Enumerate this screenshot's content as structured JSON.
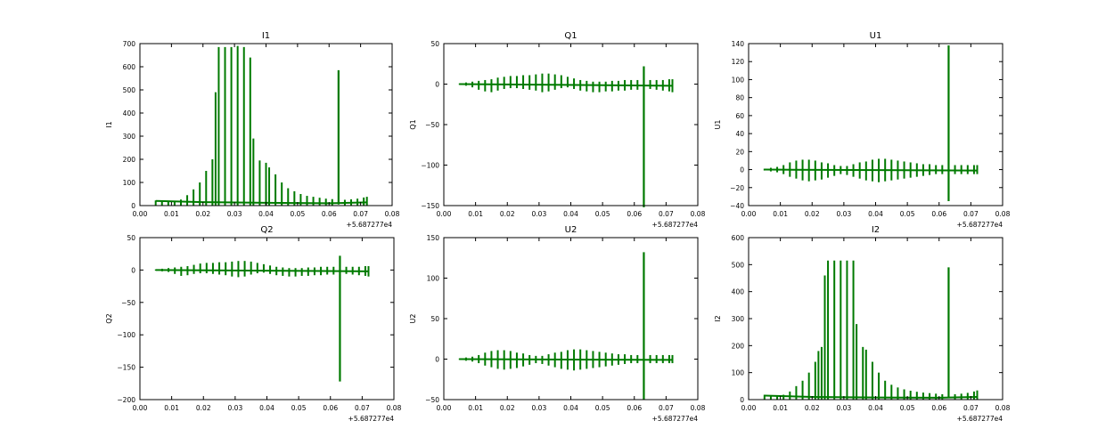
{
  "chart_data": [
    {
      "type": "line",
      "title": "I1",
      "ylabel": "I1",
      "xlim": [
        0.0,
        0.08
      ],
      "ylim": [
        0,
        700
      ],
      "xticks": [
        "0.00",
        "0.01",
        "0.02",
        "0.03",
        "0.04",
        "0.05",
        "0.06",
        "0.07",
        "0.08"
      ],
      "yticks": [
        "0",
        "100",
        "200",
        "300",
        "400",
        "500",
        "600",
        "700"
      ],
      "offset_label": "+5.687277e4",
      "line_color": "#007a00",
      "baseline": [
        [
          0.005,
          20
        ],
        [
          0.02,
          15
        ],
        [
          0.04,
          12
        ],
        [
          0.06,
          10
        ],
        [
          0.072,
          14
        ]
      ],
      "bars": [
        [
          0.005,
          0,
          22
        ],
        [
          0.007,
          0,
          21
        ],
        [
          0.009,
          0,
          20
        ],
        [
          0.011,
          0,
          21
        ],
        [
          0.013,
          0,
          26
        ],
        [
          0.015,
          0,
          45
        ],
        [
          0.017,
          0,
          70
        ],
        [
          0.019,
          0,
          100
        ],
        [
          0.021,
          0,
          150
        ],
        [
          0.023,
          0,
          200
        ],
        [
          0.024,
          0,
          490
        ],
        [
          0.025,
          0,
          685
        ],
        [
          0.027,
          0,
          685
        ],
        [
          0.029,
          0,
          685
        ],
        [
          0.031,
          0,
          690
        ],
        [
          0.033,
          0,
          685
        ],
        [
          0.035,
          0,
          640
        ],
        [
          0.036,
          0,
          290
        ],
        [
          0.038,
          0,
          195
        ],
        [
          0.04,
          0,
          185
        ],
        [
          0.041,
          0,
          165
        ],
        [
          0.043,
          0,
          135
        ],
        [
          0.045,
          0,
          100
        ],
        [
          0.047,
          0,
          75
        ],
        [
          0.049,
          0,
          62
        ],
        [
          0.051,
          0,
          50
        ],
        [
          0.053,
          0,
          42
        ],
        [
          0.055,
          0,
          38
        ],
        [
          0.057,
          0,
          34
        ],
        [
          0.059,
          0,
          30
        ],
        [
          0.061,
          0,
          28
        ],
        [
          0.065,
          0,
          25
        ],
        [
          0.067,
          0,
          27
        ],
        [
          0.069,
          0,
          30
        ],
        [
          0.071,
          0,
          35
        ],
        [
          0.072,
          0,
          38
        ]
      ],
      "spike": {
        "x": 0.063,
        "y": [
          5,
          585
        ]
      }
    },
    {
      "type": "line",
      "title": "Q1",
      "ylabel": "Q1",
      "xlim": [
        0.0,
        0.08
      ],
      "ylim": [
        -150,
        50
      ],
      "xticks": [
        "0.00",
        "0.01",
        "0.02",
        "0.03",
        "0.04",
        "0.05",
        "0.06",
        "0.07",
        "0.08"
      ],
      "yticks": [
        "−150",
        "−100",
        "−50",
        "0",
        "50"
      ],
      "offset_label": "+5.687277e4",
      "line_color": "#007a00",
      "baseline": [
        [
          0.005,
          0
        ],
        [
          0.072,
          -2
        ]
      ],
      "bars": [
        [
          0.005,
          -1,
          1
        ],
        [
          0.007,
          -2,
          2
        ],
        [
          0.009,
          -4,
          3
        ],
        [
          0.011,
          -7,
          4
        ],
        [
          0.013,
          -9,
          5
        ],
        [
          0.015,
          -10,
          6
        ],
        [
          0.017,
          -8,
          8
        ],
        [
          0.019,
          -6,
          9
        ],
        [
          0.021,
          -5,
          10
        ],
        [
          0.023,
          -5,
          10
        ],
        [
          0.025,
          -6,
          11
        ],
        [
          0.027,
          -7,
          11
        ],
        [
          0.029,
          -8,
          12
        ],
        [
          0.031,
          -10,
          13
        ],
        [
          0.033,
          -9,
          13
        ],
        [
          0.035,
          -7,
          12
        ],
        [
          0.037,
          -5,
          11
        ],
        [
          0.039,
          -4,
          9
        ],
        [
          0.041,
          -6,
          7
        ],
        [
          0.043,
          -8,
          5
        ],
        [
          0.045,
          -9,
          4
        ],
        [
          0.047,
          -10,
          3
        ],
        [
          0.049,
          -10,
          3
        ],
        [
          0.051,
          -9,
          3
        ],
        [
          0.053,
          -9,
          4
        ],
        [
          0.055,
          -8,
          4
        ],
        [
          0.057,
          -8,
          5
        ],
        [
          0.059,
          -7,
          5
        ],
        [
          0.061,
          -7,
          5
        ],
        [
          0.065,
          -6,
          5
        ],
        [
          0.067,
          -7,
          5
        ],
        [
          0.069,
          -8,
          5
        ],
        [
          0.071,
          -9,
          6
        ],
        [
          0.072,
          -10,
          6
        ]
      ],
      "spike": {
        "x": 0.063,
        "y": [
          -152,
          22
        ]
      }
    },
    {
      "type": "line",
      "title": "U1",
      "ylabel": "U1",
      "xlim": [
        0.0,
        0.08
      ],
      "ylim": [
        -40,
        140
      ],
      "xticks": [
        "0.00",
        "0.01",
        "0.02",
        "0.03",
        "0.04",
        "0.05",
        "0.06",
        "0.07",
        "0.08"
      ],
      "yticks": [
        "−40",
        "−20",
        "0",
        "20",
        "40",
        "60",
        "80",
        "100",
        "120",
        "140"
      ],
      "offset_label": "+5.687277e4",
      "line_color": "#007a00",
      "baseline": [
        [
          0.005,
          0
        ],
        [
          0.072,
          -1
        ]
      ],
      "bars": [
        [
          0.005,
          -1,
          1
        ],
        [
          0.007,
          -2,
          2
        ],
        [
          0.009,
          -3,
          3
        ],
        [
          0.011,
          -5,
          5
        ],
        [
          0.013,
          -8,
          8
        ],
        [
          0.015,
          -10,
          10
        ],
        [
          0.017,
          -12,
          11
        ],
        [
          0.019,
          -13,
          11
        ],
        [
          0.021,
          -12,
          10
        ],
        [
          0.023,
          -11,
          8
        ],
        [
          0.025,
          -9,
          7
        ],
        [
          0.027,
          -7,
          5
        ],
        [
          0.029,
          -5,
          4
        ],
        [
          0.031,
          -6,
          4
        ],
        [
          0.033,
          -8,
          6
        ],
        [
          0.035,
          -10,
          8
        ],
        [
          0.037,
          -12,
          9
        ],
        [
          0.039,
          -13,
          11
        ],
        [
          0.041,
          -14,
          12
        ],
        [
          0.043,
          -13,
          12
        ],
        [
          0.045,
          -12,
          11
        ],
        [
          0.047,
          -11,
          10
        ],
        [
          0.049,
          -10,
          9
        ],
        [
          0.051,
          -9,
          8
        ],
        [
          0.053,
          -8,
          7
        ],
        [
          0.055,
          -7,
          6
        ],
        [
          0.057,
          -6,
          6
        ],
        [
          0.059,
          -5,
          5
        ],
        [
          0.061,
          -5,
          5
        ],
        [
          0.065,
          -5,
          5
        ],
        [
          0.067,
          -5,
          5
        ],
        [
          0.069,
          -5,
          5
        ],
        [
          0.071,
          -5,
          5
        ],
        [
          0.072,
          -5,
          5
        ]
      ],
      "spike": {
        "x": 0.063,
        "y": [
          -35,
          138
        ]
      }
    },
    {
      "type": "line",
      "title": "Q2",
      "ylabel": "Q2",
      "xlim": [
        0.0,
        0.08
      ],
      "ylim": [
        -200,
        50
      ],
      "xticks": [
        "0.00",
        "0.01",
        "0.02",
        "0.03",
        "0.04",
        "0.05",
        "0.06",
        "0.07",
        "0.08"
      ],
      "yticks": [
        "−200",
        "−150",
        "−100",
        "−50",
        "0",
        "50"
      ],
      "offset_label": "+5.687277e4",
      "line_color": "#007a00",
      "baseline": [
        [
          0.005,
          0
        ],
        [
          0.072,
          -2
        ]
      ],
      "bars": [
        [
          0.005,
          -1,
          1
        ],
        [
          0.007,
          -2,
          2
        ],
        [
          0.009,
          -3,
          3
        ],
        [
          0.011,
          -6,
          4
        ],
        [
          0.013,
          -9,
          5
        ],
        [
          0.015,
          -8,
          6
        ],
        [
          0.017,
          -6,
          8
        ],
        [
          0.019,
          -5,
          10
        ],
        [
          0.021,
          -5,
          11
        ],
        [
          0.023,
          -6,
          11
        ],
        [
          0.025,
          -7,
          12
        ],
        [
          0.027,
          -8,
          12
        ],
        [
          0.029,
          -10,
          13
        ],
        [
          0.031,
          -11,
          14
        ],
        [
          0.033,
          -10,
          14
        ],
        [
          0.035,
          -7,
          13
        ],
        [
          0.037,
          -5,
          11
        ],
        [
          0.039,
          -4,
          9
        ],
        [
          0.041,
          -6,
          7
        ],
        [
          0.043,
          -8,
          5
        ],
        [
          0.045,
          -9,
          4
        ],
        [
          0.047,
          -10,
          3
        ],
        [
          0.049,
          -10,
          3
        ],
        [
          0.051,
          -9,
          3
        ],
        [
          0.053,
          -9,
          4
        ],
        [
          0.055,
          -8,
          4
        ],
        [
          0.057,
          -8,
          5
        ],
        [
          0.059,
          -7,
          5
        ],
        [
          0.061,
          -7,
          5
        ],
        [
          0.065,
          -6,
          5
        ],
        [
          0.067,
          -7,
          5
        ],
        [
          0.069,
          -8,
          5
        ],
        [
          0.071,
          -9,
          6
        ],
        [
          0.072,
          -10,
          6
        ]
      ],
      "spike": {
        "x": 0.063,
        "y": [
          -172,
          22
        ]
      }
    },
    {
      "type": "line",
      "title": "U2",
      "ylabel": "U2",
      "xlim": [
        0.0,
        0.08
      ],
      "ylim": [
        -50,
        150
      ],
      "xticks": [
        "0.00",
        "0.01",
        "0.02",
        "0.03",
        "0.04",
        "0.05",
        "0.06",
        "0.07",
        "0.08"
      ],
      "yticks": [
        "−50",
        "0",
        "50",
        "100",
        "150"
      ],
      "offset_label": "+5.687277e4",
      "line_color": "#007a00",
      "baseline": [
        [
          0.005,
          0
        ],
        [
          0.072,
          -1
        ]
      ],
      "bars": [
        [
          0.005,
          -1,
          1
        ],
        [
          0.007,
          -2,
          2
        ],
        [
          0.009,
          -3,
          3
        ],
        [
          0.011,
          -5,
          5
        ],
        [
          0.013,
          -8,
          8
        ],
        [
          0.015,
          -10,
          10
        ],
        [
          0.017,
          -12,
          11
        ],
        [
          0.019,
          -13,
          11
        ],
        [
          0.021,
          -12,
          10
        ],
        [
          0.023,
          -11,
          8
        ],
        [
          0.025,
          -9,
          7
        ],
        [
          0.027,
          -7,
          5
        ],
        [
          0.029,
          -5,
          4
        ],
        [
          0.031,
          -6,
          4
        ],
        [
          0.033,
          -8,
          6
        ],
        [
          0.035,
          -10,
          8
        ],
        [
          0.037,
          -12,
          9
        ],
        [
          0.039,
          -13,
          11
        ],
        [
          0.041,
          -14,
          12
        ],
        [
          0.043,
          -13,
          12
        ],
        [
          0.045,
          -12,
          11
        ],
        [
          0.047,
          -11,
          10
        ],
        [
          0.049,
          -10,
          9
        ],
        [
          0.051,
          -9,
          8
        ],
        [
          0.053,
          -8,
          7
        ],
        [
          0.055,
          -7,
          6
        ],
        [
          0.057,
          -6,
          6
        ],
        [
          0.059,
          -5,
          5
        ],
        [
          0.061,
          -5,
          5
        ],
        [
          0.065,
          -5,
          5
        ],
        [
          0.067,
          -5,
          5
        ],
        [
          0.069,
          -5,
          5
        ],
        [
          0.071,
          -5,
          5
        ],
        [
          0.072,
          -5,
          5
        ]
      ],
      "spike": {
        "x": 0.063,
        "y": [
          -50,
          132
        ]
      }
    },
    {
      "type": "line",
      "title": "I2",
      "ylabel": "I2",
      "xlim": [
        0.0,
        0.08
      ],
      "ylim": [
        0,
        600
      ],
      "xticks": [
        "0.00",
        "0.01",
        "0.02",
        "0.03",
        "0.04",
        "0.05",
        "0.06",
        "0.07",
        "0.08"
      ],
      "yticks": [
        "0",
        "100",
        "200",
        "300",
        "400",
        "500",
        "600"
      ],
      "offset_label": "+5.687277e4",
      "line_color": "#007a00",
      "baseline": [
        [
          0.005,
          15
        ],
        [
          0.02,
          10
        ],
        [
          0.04,
          8
        ],
        [
          0.06,
          7
        ],
        [
          0.072,
          10
        ]
      ],
      "bars": [
        [
          0.005,
          0,
          18
        ],
        [
          0.007,
          0,
          16
        ],
        [
          0.009,
          0,
          15
        ],
        [
          0.011,
          0,
          18
        ],
        [
          0.013,
          0,
          30
        ],
        [
          0.015,
          0,
          50
        ],
        [
          0.017,
          0,
          70
        ],
        [
          0.019,
          0,
          100
        ],
        [
          0.021,
          0,
          140
        ],
        [
          0.022,
          0,
          180
        ],
        [
          0.023,
          0,
          195
        ],
        [
          0.024,
          0,
          460
        ],
        [
          0.025,
          0,
          515
        ],
        [
          0.027,
          0,
          515
        ],
        [
          0.029,
          0,
          515
        ],
        [
          0.031,
          0,
          515
        ],
        [
          0.033,
          0,
          515
        ],
        [
          0.034,
          0,
          280
        ],
        [
          0.036,
          0,
          195
        ],
        [
          0.037,
          0,
          185
        ],
        [
          0.039,
          0,
          140
        ],
        [
          0.041,
          0,
          100
        ],
        [
          0.043,
          0,
          70
        ],
        [
          0.045,
          0,
          55
        ],
        [
          0.047,
          0,
          45
        ],
        [
          0.049,
          0,
          38
        ],
        [
          0.051,
          0,
          33
        ],
        [
          0.053,
          0,
          29
        ],
        [
          0.055,
          0,
          26
        ],
        [
          0.057,
          0,
          24
        ],
        [
          0.059,
          0,
          22
        ],
        [
          0.061,
          0,
          20
        ],
        [
          0.065,
          0,
          20
        ],
        [
          0.067,
          0,
          22
        ],
        [
          0.069,
          0,
          25
        ],
        [
          0.071,
          0,
          30
        ],
        [
          0.072,
          0,
          34
        ]
      ],
      "spike": {
        "x": 0.063,
        "y": [
          5,
          490
        ]
      }
    }
  ]
}
